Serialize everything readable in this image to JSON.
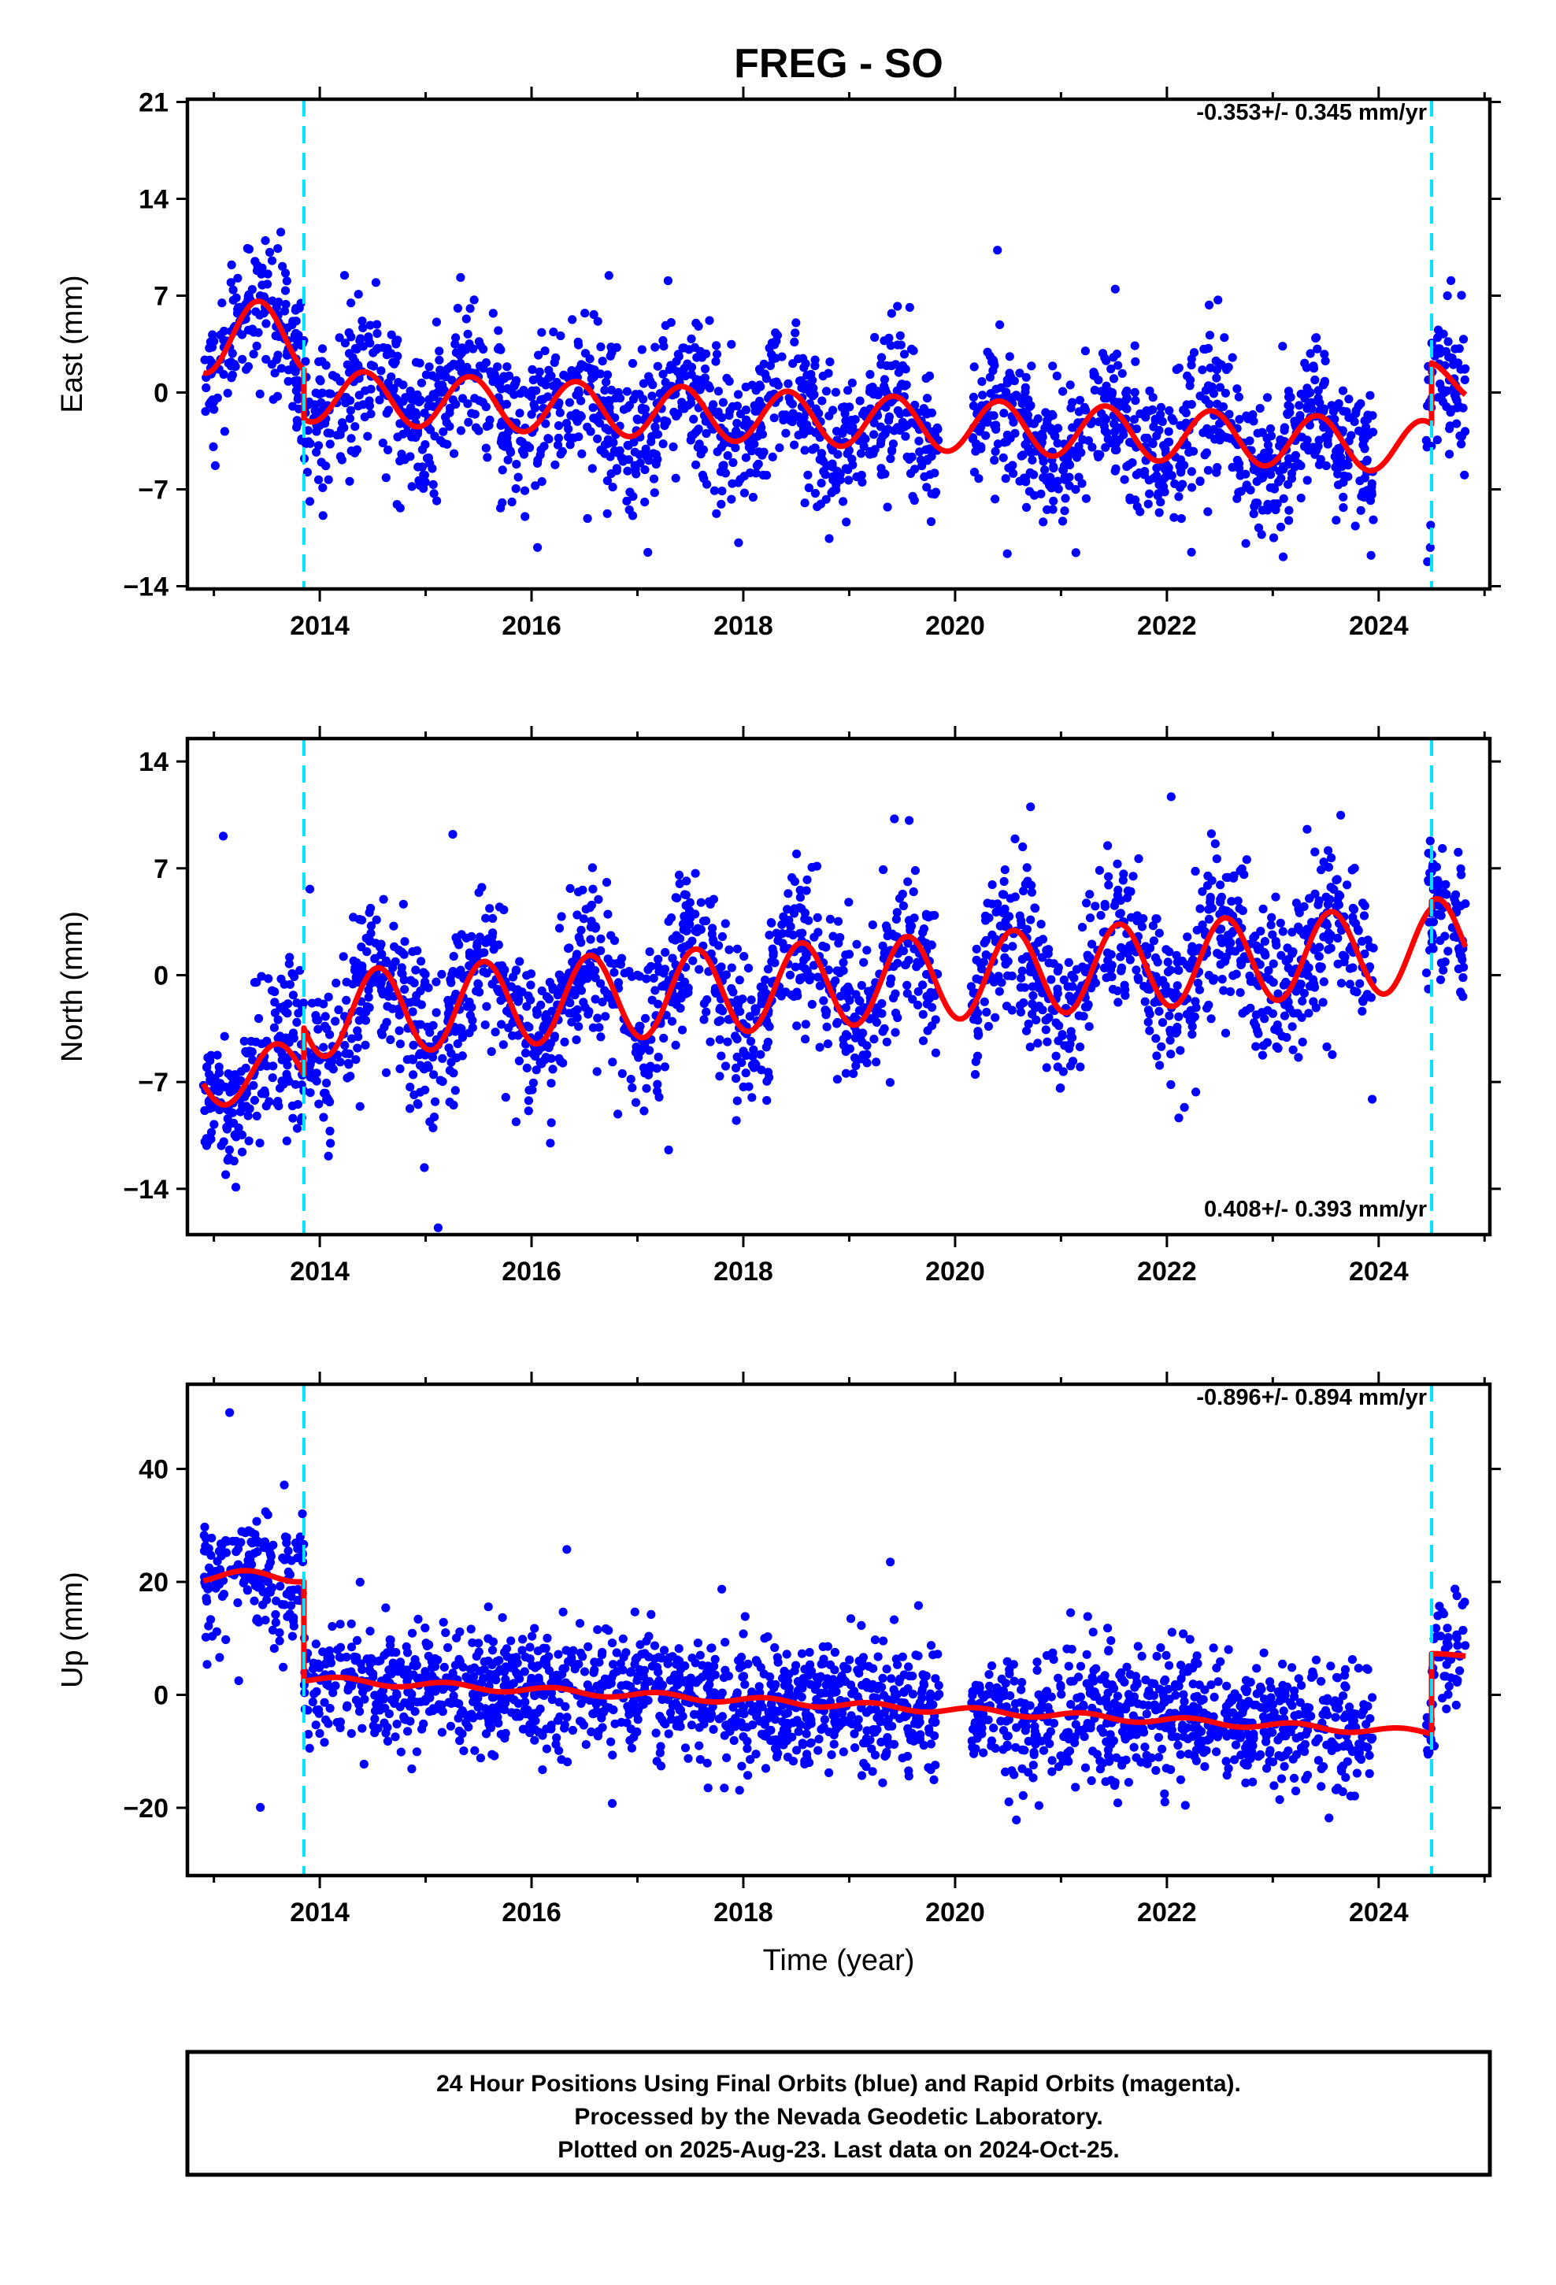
{
  "title": "FREG - SO",
  "xlabel": "Time (year)",
  "footer": {
    "line1": "24 Hour Positions Using Final Orbits (blue) and Rapid Orbits (magenta).",
    "line2": "Processed by the Nevada Geodetic Laboratory.",
    "line3": "Plotted on 2025-Aug-23. Last data on 2024-Oct-25."
  },
  "colors": {
    "points": "#0000ff",
    "model": "#ff0000",
    "steps": "#00e5ff",
    "frame": "#000000"
  },
  "chart_data": [
    {
      "type": "scatter",
      "component": "East",
      "ylabel": "East (mm)",
      "rate_text": "-0.353+/- 0.345 mm/yr",
      "xlim": [
        2012.75,
        2025.05
      ],
      "ylim": [
        -14.2,
        21.2
      ],
      "yticks": [
        -14,
        -7,
        0,
        7,
        14,
        21
      ],
      "yticklabels": [
        "−14",
        "−7",
        "0",
        "7",
        "14",
        "21"
      ],
      "xticks": [
        2014,
        2016,
        2018,
        2020,
        2022,
        2024
      ],
      "xticklabels": [
        "2014",
        "2016",
        "2018",
        "2020",
        "2022",
        "2024"
      ],
      "steps": [
        2013.85,
        2024.5
      ],
      "grid": false,
      "model": {
        "segments": [
          {
            "start": 2012.9,
            "end": 2013.85,
            "a": 4.0,
            "b": 0.0,
            "amp": 2.6,
            "phase": 2013.42
          },
          {
            "start": 2013.85,
            "end": 2024.5,
            "a": -0.2,
            "b": -0.353,
            "amp": 1.9,
            "phase": 2014.42
          },
          {
            "start": 2024.5,
            "end": 2024.82,
            "a": 0.8,
            "b": 0.0,
            "amp": 1.4,
            "phase": 2024.45
          }
        ]
      },
      "scatter": {
        "n": 2300,
        "sigma": 2.7,
        "gaps": [
          [
            2019.85,
            2020.15
          ],
          [
            2023.95,
            2024.45
          ]
        ]
      }
    },
    {
      "type": "scatter",
      "component": "North",
      "ylabel": "North (mm)",
      "rate_text": "0.408+/- 0.393 mm/yr",
      "xlim": [
        2012.75,
        2025.05
      ],
      "ylim": [
        -17.0,
        15.5
      ],
      "yticks": [
        -14,
        -7,
        0,
        7,
        14
      ],
      "yticklabels": [
        "−14",
        "−7",
        "0",
        "7",
        "14"
      ],
      "xticks": [
        2014,
        2016,
        2018,
        2020,
        2022,
        2024
      ],
      "xticklabels": [
        "2014",
        "2016",
        "2018",
        "2020",
        "2022",
        "2024"
      ],
      "steps": [
        2013.85,
        2024.5
      ],
      "grid": false,
      "model": {
        "segments": [
          {
            "start": 2012.9,
            "end": 2013.85,
            "a": -6.5,
            "b": 0.0,
            "amp": 2.0,
            "phase": 2013.6
          },
          {
            "start": 2013.85,
            "end": 2024.5,
            "a": -2.6,
            "b": 0.408,
            "amp": 2.8,
            "phase": 2014.55
          },
          {
            "start": 2024.5,
            "end": 2024.82,
            "a": 2.2,
            "b": 0.0,
            "amp": 2.8,
            "phase": 2024.55
          }
        ]
      },
      "scatter": {
        "n": 2300,
        "sigma": 2.6,
        "gaps": [
          [
            2019.85,
            2020.15
          ],
          [
            2023.95,
            2024.45
          ]
        ]
      }
    },
    {
      "type": "scatter",
      "component": "Up",
      "ylabel": "Up (mm)",
      "rate_text": "-0.896+/- 0.894 mm/yr",
      "xlim": [
        2012.75,
        2025.05
      ],
      "ylim": [
        -32,
        55
      ],
      "yticks": [
        -20,
        0,
        20,
        40
      ],
      "yticklabels": [
        "−20",
        "0",
        "20",
        "40"
      ],
      "xticks": [
        2014,
        2016,
        2018,
        2020,
        2022,
        2024
      ],
      "xticklabels": [
        "2014",
        "2016",
        "2018",
        "2020",
        "2022",
        "2024"
      ],
      "steps": [
        2013.85,
        2024.5
      ],
      "grid": false,
      "model": {
        "segments": [
          {
            "start": 2012.9,
            "end": 2013.85,
            "a": 21.0,
            "b": 0.0,
            "amp": 1.0,
            "phase": 2013.3
          },
          {
            "start": 2013.85,
            "end": 2024.5,
            "a": 2.8,
            "b": -0.896,
            "amp": 0.6,
            "phase": 2014.2
          },
          {
            "start": 2024.5,
            "end": 2024.82,
            "a": 7.0,
            "b": 0.0,
            "amp": 0.3,
            "phase": 2024.5
          }
        ]
      },
      "scatter": {
        "n": 2300,
        "sigma": 5.6,
        "gaps": [
          [
            2019.85,
            2020.15
          ],
          [
            2023.95,
            2024.45
          ]
        ]
      }
    }
  ]
}
